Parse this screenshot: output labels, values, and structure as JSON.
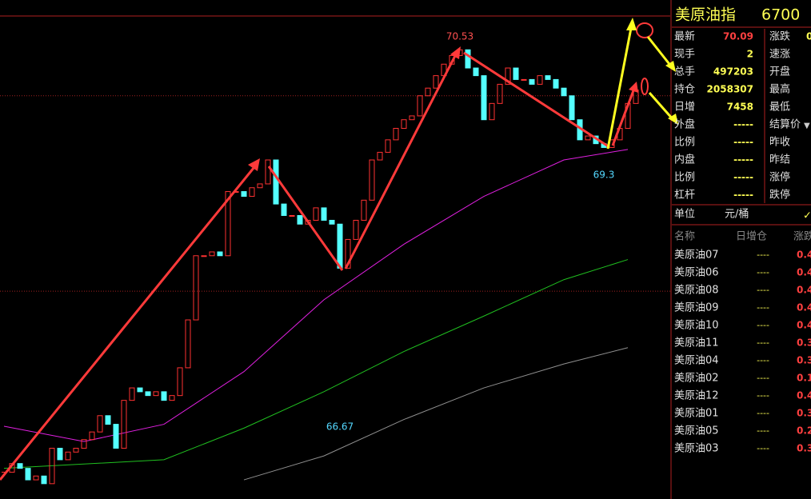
{
  "chart": {
    "type": "candlestick",
    "closes": [
      66.1,
      66.19,
      66.14,
      66.02,
      66.06,
      65.98,
      66.35,
      66.23,
      66.31,
      66.35,
      66.44,
      66.52,
      66.69,
      66.6,
      66.35,
      66.85,
      66.98,
      66.94,
      66.9,
      66.94,
      66.85,
      66.9,
      67.19,
      67.69,
      68.36,
      68.36,
      68.4,
      68.36,
      69.03,
      69.03,
      68.98,
      69.07,
      69.11,
      69.36,
      68.9,
      68.78,
      68.78,
      68.69,
      68.73,
      68.86,
      68.73,
      68.69,
      68.23,
      68.53,
      68.73,
      68.94,
      69.36,
      69.44,
      69.57,
      69.69,
      69.78,
      69.82,
      70.03,
      70.11,
      70.24,
      70.36,
      70.45,
      70.51,
      70.32,
      70.24,
      69.78,
      69.95,
      70.15,
      70.32,
      70.2,
      70.2,
      70.15,
      70.24,
      70.2,
      70.11,
      70.03,
      69.78,
      69.57,
      69.61,
      69.53,
      69.49,
      69.57,
      69.69,
      69.95,
      70.09
    ],
    "ylim": [
      65.82,
      71.03
    ],
    "up_color": "#ff3232",
    "down_color": "#54ffff",
    "ma_lines": [
      {
        "color": "#e020e0",
        "x": [
          0,
          10,
          20,
          30,
          40,
          50,
          60,
          70,
          78
        ],
        "values": [
          66.58,
          66.42,
          66.6,
          67.15,
          67.9,
          68.48,
          68.98,
          69.36,
          69.47
        ]
      },
      {
        "color": "#20c020",
        "x": [
          0,
          20,
          30,
          40,
          50,
          60,
          70,
          78
        ],
        "values": [
          66.14,
          66.23,
          66.56,
          66.94,
          67.36,
          67.73,
          68.11,
          68.32
        ]
      },
      {
        "color": "#909090",
        "x": [
          30,
          40,
          50,
          60,
          70,
          78
        ],
        "values": [
          66.02,
          66.27,
          66.65,
          66.98,
          67.23,
          67.4
        ]
      }
    ],
    "ref_lines": [
      70.03,
      67.99
    ],
    "annotations": [
      {
        "value": 70.53,
        "x": 57,
        "color": "#ff5050"
      },
      {
        "value": 66.67,
        "x": 42,
        "color": "#54d8ff"
      },
      {
        "value": 69.3,
        "x": 75,
        "color": "#54d8ff"
      }
    ]
  },
  "quote": {
    "title": "美原油指",
    "code": "6700",
    "rows": [
      [
        "最新",
        70.09,
        "涨跌",
        0
      ],
      [
        "现手",
        2,
        "速涨",
        null
      ],
      [
        "总手",
        497203,
        "开盘",
        null
      ],
      [
        "持仓",
        2058307,
        "最高",
        null
      ],
      [
        "日增",
        7458,
        "最低",
        null
      ],
      [
        "外盘",
        "-----",
        "结算价",
        null
      ],
      [
        "比例",
        "-----",
        "昨收",
        null
      ],
      [
        "内盘",
        "-----",
        "昨结",
        null
      ],
      [
        "比例",
        "-----",
        "涨停",
        null
      ],
      [
        "杠杆",
        "-----",
        "跌停",
        null
      ]
    ]
  },
  "unit": {
    "label": "单位",
    "value": "元/桶"
  },
  "list": {
    "headers": [
      "名称",
      "日增仓",
      "涨跌"
    ],
    "rows": [
      [
        "美原油07",
        "----",
        0.4
      ],
      [
        "美原油06",
        "----",
        0.4
      ],
      [
        "美原油08",
        "----",
        0.4
      ],
      [
        "美原油09",
        "----",
        0.4
      ],
      [
        "美原油10",
        "----",
        0.4
      ],
      [
        "美原油11",
        "----",
        0.3
      ],
      [
        "美原油04",
        "----",
        0.3
      ],
      [
        "美原油02",
        "----",
        0.1
      ],
      [
        "美原油12",
        "----",
        0.4
      ],
      [
        "美原油01",
        "----",
        0.3
      ],
      [
        "美原油05",
        "----",
        0.2
      ],
      [
        "美原油03",
        "----",
        0.3
      ]
    ]
  }
}
